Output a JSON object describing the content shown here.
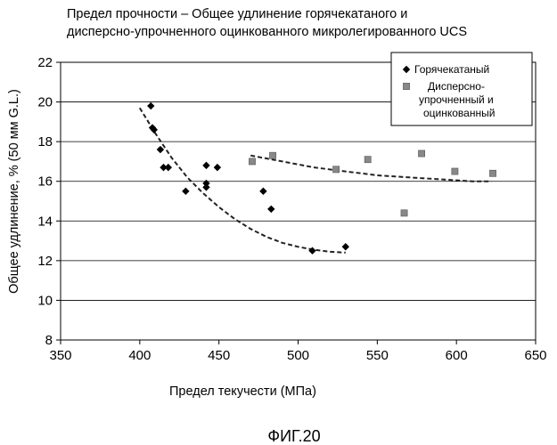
{
  "chart_data": {
    "type": "scatter",
    "title_lines": [
      "Предел прочности – Общее удлинение горячекатаного и",
      "дисперсно-упрочненного оцинкованного микролегированного UCS"
    ],
    "xlabel": "Предел текучести (МПа)",
    "ylabel": "Общее удлинение, % (50 мм G.L.)",
    "xlim": [
      350,
      650
    ],
    "ylim": [
      8,
      22
    ],
    "xticks": [
      350,
      400,
      450,
      500,
      550,
      600,
      650
    ],
    "yticks": [
      8,
      10,
      12,
      14,
      16,
      18,
      20,
      22
    ],
    "grid": "horizontal",
    "legend_position": "top-right",
    "series": [
      {
        "name": "Горячекатаный",
        "marker": "diamond",
        "color": "#000000",
        "points": [
          [
            407,
            19.8
          ],
          [
            408,
            18.7
          ],
          [
            409,
            18.6
          ],
          [
            413,
            17.6
          ],
          [
            415,
            16.7
          ],
          [
            418,
            16.7
          ],
          [
            429,
            15.5
          ],
          [
            442,
            16.8
          ],
          [
            442,
            15.9
          ],
          [
            442,
            15.7
          ],
          [
            449,
            16.7
          ],
          [
            478,
            15.5
          ],
          [
            483,
            14.6
          ],
          [
            509,
            12.5
          ],
          [
            530,
            12.7
          ]
        ],
        "trend": [
          [
            400,
            19.7
          ],
          [
            410,
            18.4
          ],
          [
            420,
            17.2
          ],
          [
            430,
            16.2
          ],
          [
            440,
            15.4
          ],
          [
            450,
            14.7
          ],
          [
            460,
            14.1
          ],
          [
            470,
            13.6
          ],
          [
            480,
            13.2
          ],
          [
            490,
            12.9
          ],
          [
            500,
            12.7
          ],
          [
            510,
            12.55
          ],
          [
            520,
            12.45
          ],
          [
            530,
            12.4
          ]
        ]
      },
      {
        "name_lines": [
          "Дисперсно-",
          "упрочненный и",
          "оцинкованный"
        ],
        "marker": "square",
        "color": "#888888",
        "points": [
          [
            471,
            17.0
          ],
          [
            484,
            17.3
          ],
          [
            524,
            16.6
          ],
          [
            544,
            17.1
          ],
          [
            567,
            14.4
          ],
          [
            578,
            17.4
          ],
          [
            599,
            16.5
          ],
          [
            623,
            16.4
          ]
        ],
        "trend": [
          [
            470,
            17.3
          ],
          [
            490,
            17.0
          ],
          [
            510,
            16.7
          ],
          [
            530,
            16.5
          ],
          [
            550,
            16.3
          ],
          [
            570,
            16.2
          ],
          [
            590,
            16.1
          ],
          [
            610,
            16.0
          ],
          [
            622,
            16.0
          ]
        ]
      }
    ]
  },
  "caption": "ФИГ.20"
}
